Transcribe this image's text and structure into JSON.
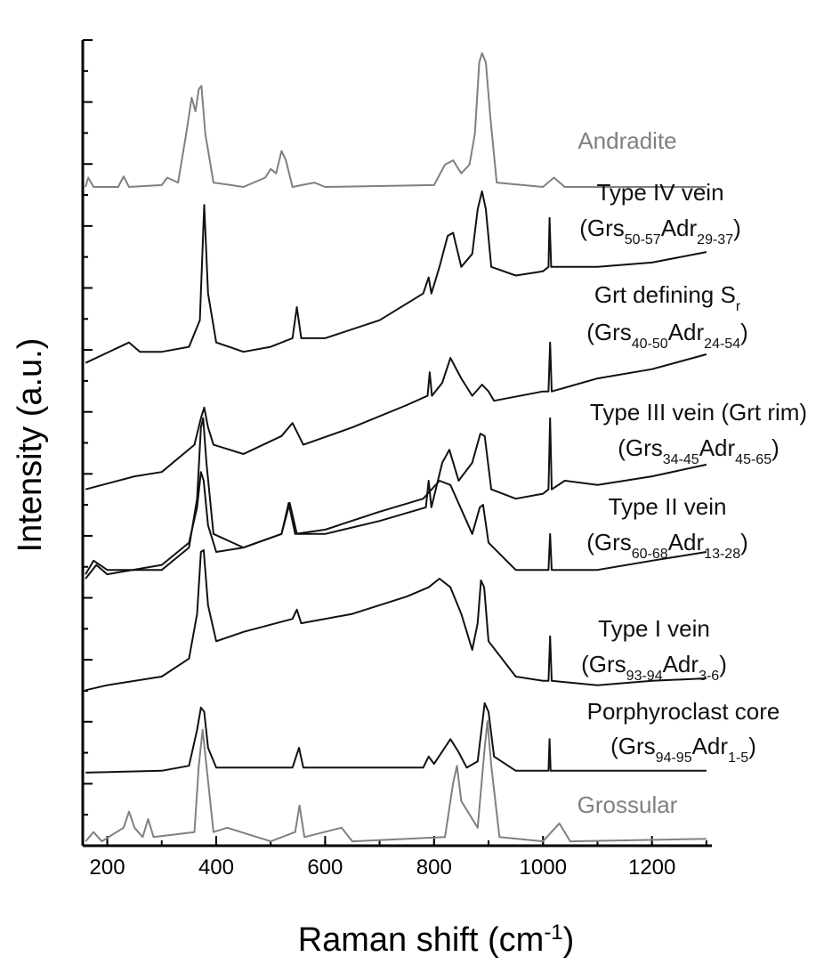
{
  "chart_data": {
    "type": "line",
    "x_label": [
      "Raman shift (cm",
      "-1",
      ")"
    ],
    "y_label": "Intensity (a.u.)",
    "xlim": [
      155,
      1310
    ],
    "xticks": [
      200,
      400,
      600,
      800,
      1000,
      1200
    ],
    "ylim": [
      0,
      13
    ],
    "series": [
      {
        "label": [
          [
            "Andradite"
          ]
        ],
        "color": "#808080",
        "x": [
          160,
          165,
          175,
          220,
          230,
          240,
          300,
          310,
          330,
          345,
          355,
          362,
          368,
          373,
          380,
          395,
          450,
          490,
          500,
          510,
          520,
          528,
          540,
          580,
          600,
          800,
          820,
          835,
          850,
          865,
          875,
          883,
          888,
          895,
          903,
          915,
          1000,
          1020,
          1040,
          1300
        ],
        "values": [
          10.63,
          10.78,
          10.63,
          10.63,
          10.8,
          10.63,
          10.66,
          10.78,
          10.7,
          11.49,
          12.07,
          11.85,
          12.21,
          12.26,
          11.49,
          10.7,
          10.63,
          10.78,
          10.92,
          10.85,
          11.21,
          11.06,
          10.63,
          10.7,
          10.63,
          10.66,
          10.99,
          11.06,
          10.85,
          10.99,
          11.49,
          12.64,
          12.79,
          12.64,
          11.78,
          10.7,
          10.63,
          10.78,
          10.63,
          10.63
        ]
      },
      {
        "label": [
          [
            "Type IV vein"
          ],
          [
            "(Grs",
            "50-57",
            "Adr",
            "29-37",
            ")"
          ]
        ],
        "color": "#111111",
        "x": [
          160,
          240,
          260,
          300,
          350,
          370,
          378,
          385,
          400,
          450,
          500,
          540,
          548,
          556,
          600,
          700,
          780,
          790,
          795,
          810,
          825,
          835,
          850,
          870,
          880,
          888,
          895,
          905,
          950,
          1000,
          1010,
          1012,
          1015,
          1100,
          1200,
          1300
        ],
        "values": [
          7.79,
          8.12,
          7.97,
          7.97,
          8.05,
          8.48,
          10.34,
          8.91,
          8.12,
          7.97,
          8.05,
          8.19,
          8.69,
          8.19,
          8.19,
          8.48,
          8.91,
          9.17,
          8.91,
          9.34,
          9.84,
          9.89,
          9.34,
          9.55,
          10.27,
          10.56,
          10.27,
          9.34,
          9.2,
          9.27,
          9.34,
          10.13,
          9.34,
          9.34,
          9.41,
          9.58
        ]
      },
      {
        "label": [
          [
            "Grt defining S",
            "r"
          ],
          [
            "(Grs",
            "40-50",
            "Adr",
            "24-54",
            ")"
          ]
        ],
        "color": "#111111",
        "x": [
          160,
          250,
          300,
          360,
          372,
          378,
          385,
          395,
          450,
          520,
          540,
          560,
          650,
          750,
          788,
          792,
          796,
          815,
          830,
          850,
          870,
          888,
          900,
          910,
          1000,
          1010,
          1013,
          1016,
          1100,
          1200,
          1300
        ],
        "values": [
          5.75,
          5.96,
          6.03,
          6.47,
          6.9,
          7.07,
          6.75,
          6.47,
          6.32,
          6.61,
          6.82,
          6.47,
          6.75,
          7.11,
          7.26,
          7.64,
          7.26,
          7.47,
          7.87,
          7.54,
          7.26,
          7.44,
          7.33,
          7.18,
          7.33,
          7.33,
          8.12,
          7.33,
          7.54,
          7.69,
          7.93
        ]
      },
      {
        "label": [
          [
            "Type III vein (Grt rim)"
          ],
          [
            "(Grs",
            "34-45",
            "Adr",
            "45-65",
            ")"
          ]
        ],
        "color": "#111111",
        "x": [
          160,
          175,
          200,
          300,
          350,
          365,
          372,
          376,
          382,
          395,
          450,
          520,
          535,
          548,
          600,
          700,
          785,
          790,
          795,
          815,
          828,
          845,
          870,
          885,
          893,
          905,
          950,
          1000,
          1010,
          1013,
          1016,
          1040,
          1100,
          1200,
          1300
        ],
        "values": [
          4.38,
          4.6,
          4.45,
          4.45,
          4.81,
          5.6,
          6.75,
          6.9,
          6.18,
          5.03,
          4.81,
          5.03,
          5.53,
          5.03,
          5.03,
          5.24,
          5.46,
          5.89,
          5.46,
          6.18,
          6.39,
          5.89,
          6.18,
          6.65,
          6.61,
          5.75,
          5.6,
          5.68,
          5.75,
          6.9,
          5.75,
          5.89,
          5.82,
          5.96,
          6.15
        ]
      },
      {
        "label": [
          [
            "Type II vein"
          ],
          [
            "(Grs",
            "60-68",
            "Adr",
            "13-28",
            ")"
          ]
        ],
        "color": "#111111",
        "x": [
          160,
          180,
          200,
          300,
          350,
          365,
          372,
          377,
          385,
          400,
          450,
          520,
          533,
          545,
          600,
          700,
          780,
          810,
          830,
          870,
          884,
          890,
          900,
          950,
          1000,
          1010,
          1013,
          1016,
          1100,
          1200,
          1300
        ],
        "values": [
          4.31,
          4.53,
          4.38,
          4.53,
          4.89,
          5.46,
          6.03,
          5.89,
          5.17,
          4.74,
          4.81,
          5.03,
          5.53,
          5.03,
          5.1,
          5.39,
          5.6,
          5.89,
          5.82,
          5.03,
          5.46,
          5.5,
          4.89,
          4.45,
          4.45,
          4.45,
          5.03,
          4.45,
          4.45,
          4.6,
          4.74
        ]
      },
      {
        "label": [
          [
            "Type I vein"
          ],
          [
            "(Grs",
            "93-94",
            "Adr",
            "3-6",
            ")"
          ]
        ],
        "color": "#111111",
        "x": [
          160,
          200,
          300,
          350,
          365,
          372,
          377,
          385,
          400,
          450,
          540,
          548,
          556,
          650,
          750,
          790,
          810,
          830,
          850,
          870,
          880,
          886,
          892,
          900,
          950,
          1000,
          1010,
          1013,
          1016,
          1100,
          1200,
          1300
        ],
        "values": [
          2.51,
          2.59,
          2.73,
          3.02,
          3.74,
          4.74,
          4.77,
          3.88,
          3.3,
          3.45,
          3.66,
          3.81,
          3.59,
          3.74,
          4.02,
          4.17,
          4.31,
          4.17,
          3.74,
          3.16,
          3.59,
          4.28,
          4.17,
          3.3,
          2.73,
          2.66,
          2.66,
          3.38,
          2.66,
          2.59,
          2.66,
          2.7
        ]
      },
      {
        "label": [
          [
            "Porphyroclast core"
          ],
          [
            "(Grs",
            "94-95",
            "Adr",
            "1-5",
            ")"
          ]
        ],
        "color": "#111111",
        "x": [
          160,
          300,
          350,
          365,
          372,
          378,
          385,
          400,
          540,
          552,
          560,
          780,
          790,
          800,
          830,
          845,
          860,
          880,
          893,
          900,
          910,
          950,
          1010,
          1012,
          1014,
          1300
        ],
        "values": [
          1.18,
          1.21,
          1.29,
          1.87,
          2.23,
          2.16,
          1.58,
          1.26,
          1.26,
          1.58,
          1.26,
          1.26,
          1.44,
          1.32,
          1.72,
          1.51,
          1.26,
          1.36,
          2.3,
          2.16,
          1.44,
          1.21,
          1.21,
          1.72,
          1.21,
          1.21
        ]
      },
      {
        "label": [
          [
            "Grossular"
          ]
        ],
        "color": "#808080",
        "x": [
          160,
          175,
          190,
          230,
          240,
          250,
          265,
          275,
          285,
          360,
          368,
          375,
          382,
          395,
          420,
          500,
          545,
          553,
          562,
          630,
          650,
          820,
          835,
          842,
          850,
          880,
          893,
          898,
          905,
          920,
          1000,
          1030,
          1050,
          1300
        ],
        "values": [
          0.07,
          0.22,
          0.07,
          0.29,
          0.55,
          0.29,
          0.14,
          0.43,
          0.14,
          0.22,
          1.29,
          1.87,
          1.29,
          0.22,
          0.29,
          0.07,
          0.22,
          0.65,
          0.14,
          0.29,
          0.07,
          0.14,
          1.01,
          1.29,
          0.72,
          0.29,
          1.58,
          2.01,
          1.29,
          0.14,
          0.07,
          0.36,
          0.07,
          0.11
        ]
      }
    ]
  }
}
